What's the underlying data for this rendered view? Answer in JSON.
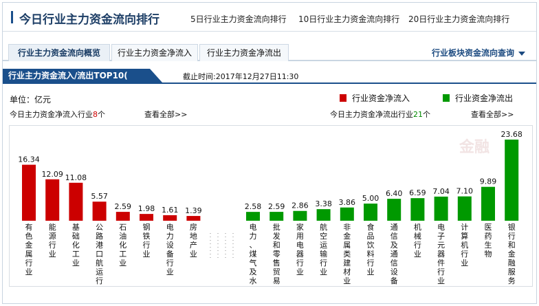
{
  "header": {
    "title": "今日行业主力资金流向排行",
    "links": [
      "5日行业主力资金流向排行",
      "10日行业主力资金流向排行",
      "20日行业主力资金流向排行"
    ]
  },
  "tabs": [
    "行业主力资金流向概览",
    "行业主力资金净流入",
    "行业主力资金净流出"
  ],
  "query_label": "行业板块资金流向查询",
  "section": {
    "title": "行业主力资金流入/流出TOP10(",
    "time": "截止时间:2017年12月27日11:30"
  },
  "unit": "单位：亿元",
  "legend": {
    "inflow": "行业资金净流入",
    "outflow": "行业资金净流出",
    "inflow_color": "#cc0000",
    "outflow_color": "#009900"
  },
  "summary": {
    "inflow_prefix": "今日主力资金净流入行业",
    "inflow_count": "8",
    "inflow_suffix": "个",
    "outflow_prefix": "今日主力资金净流出行业",
    "outflow_count": "21",
    "outflow_suffix": "个",
    "view_all": "查看全部>>"
  },
  "chart_data": {
    "type": "bar",
    "ylim": [
      0,
      23.68
    ],
    "series": [
      {
        "name": "行业资金净流入",
        "categories": [
          "有色金属行业",
          "能源行业",
          "基础化工业",
          "公路港口航运行",
          "石油化工业",
          "钢铁行业",
          "电力设备行业",
          "房地产业"
        ],
        "values": [
          16.34,
          12.09,
          11.08,
          5.57,
          2.59,
          1.98,
          1.61,
          1.39
        ],
        "labels": [
          "16.34",
          "12.09",
          "11.08",
          "5.57",
          "2.59",
          "1.98",
          "1.61",
          "1.39"
        ]
      },
      {
        "name": "行业资金净流出",
        "categories": [
          "电力、煤气及水",
          "批发和零售贸易",
          "家用电器行业",
          "航空运输行业",
          "非金属类建材业",
          "食品饮料行业",
          "通信及通信设备",
          "机械行业",
          "电子元器件行业",
          "计算机行业",
          "医药生物",
          "银行和金融服务"
        ],
        "values": [
          2.58,
          2.59,
          2.86,
          3.38,
          3.86,
          5.0,
          6.4,
          6.59,
          7.04,
          7.1,
          9.89,
          23.68
        ],
        "labels": [
          "2.58",
          "2.59",
          "2.86",
          "3.38",
          "3.86",
          "5.00",
          "6.40",
          "6.59",
          "7.04",
          "7.10",
          "9.89",
          "23.68"
        ]
      }
    ]
  }
}
